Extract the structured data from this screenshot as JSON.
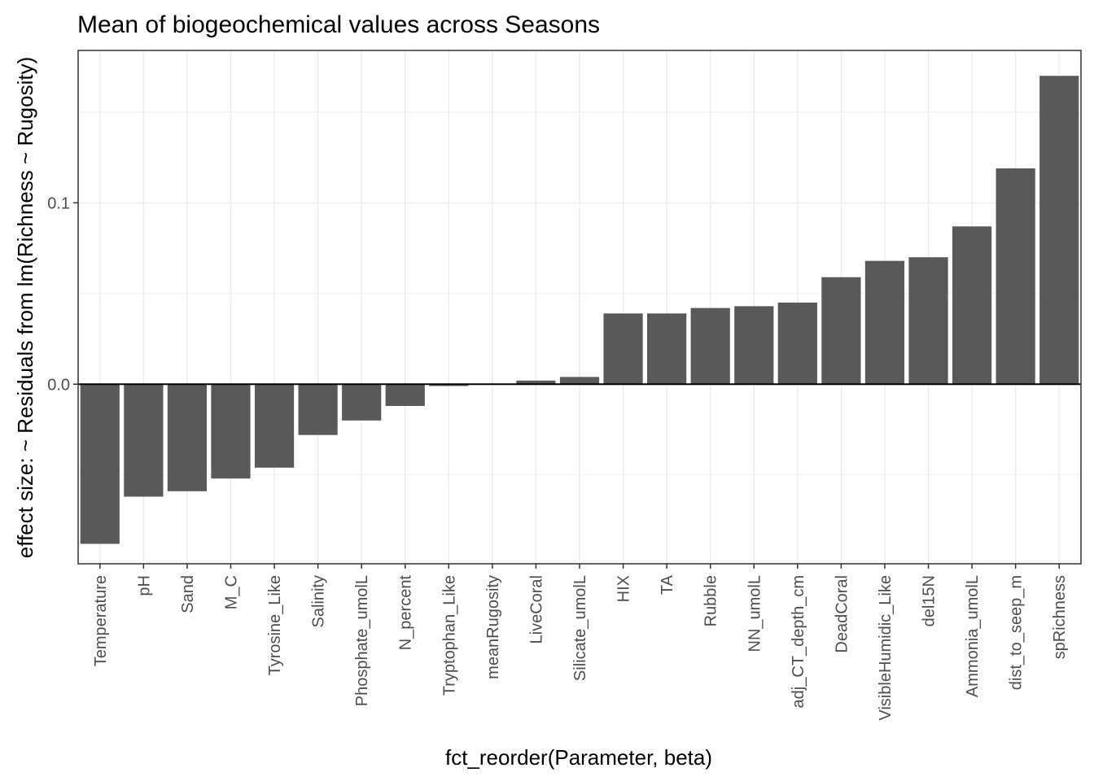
{
  "chart_data": {
    "type": "bar",
    "title": "Mean of biogeochemical values across Seasons",
    "xlabel": "fct_reorder(Parameter, beta)",
    "ylabel": "effect size: ~ Residuals from lm(Richness ~ Rugosity)",
    "categories": [
      "Temperature",
      "pH",
      "Sand",
      "M_C",
      "Tyrosine_Like",
      "Salinity",
      "Phosphate_umolL",
      "N_percent",
      "Tryptophan_Like",
      "meanRugosity",
      "LiveCoral",
      "Silicate_umolL",
      "HIX",
      "TA",
      "Rubble",
      "NN_umolL",
      "adj_CT_depth_cm",
      "DeadCoral",
      "VisibleHumidic_Like",
      "del15N",
      "Ammonia_umolL",
      "dist_to_seep_m",
      "spRichness"
    ],
    "values": [
      -0.088,
      -0.062,
      -0.059,
      -0.052,
      -0.046,
      -0.028,
      -0.02,
      -0.012,
      -0.001,
      0.0,
      0.002,
      0.004,
      0.039,
      0.039,
      0.042,
      0.043,
      0.045,
      0.059,
      0.068,
      0.07,
      0.087,
      0.119,
      0.17
    ],
    "yticks": [
      0.0,
      0.1
    ],
    "ytick_labels": [
      "0.0",
      "0.1"
    ],
    "ylim": [
      -0.099,
      0.184
    ],
    "bar_color": "#595959",
    "zero_line": true,
    "grid": true
  }
}
